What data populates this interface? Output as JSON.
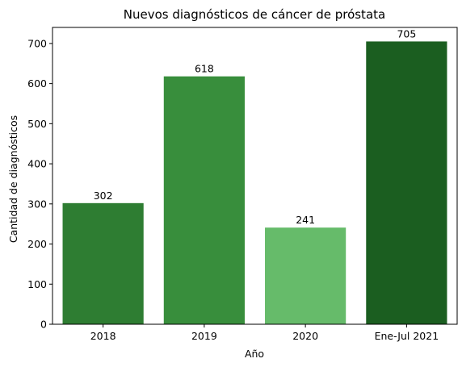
{
  "chart_data": {
    "type": "bar",
    "title": "Nuevos diagnósticos de cáncer de próstata",
    "xlabel": "Año",
    "ylabel": "Cantidad de diagnósticos",
    "categories": [
      "2018",
      "2019",
      "2020",
      "Ene-Jul 2021"
    ],
    "values": [
      302,
      618,
      241,
      705
    ],
    "data_labels": [
      "302",
      "618",
      "241",
      "705"
    ],
    "bar_colors": [
      "#2e7d32",
      "#388e3c",
      "#66bb6a",
      "#1b5e20"
    ],
    "ylim": [
      0,
      740
    ],
    "yticks": [
      0,
      100,
      200,
      300,
      400,
      500,
      600,
      700
    ],
    "grid": false,
    "legend": null
  }
}
